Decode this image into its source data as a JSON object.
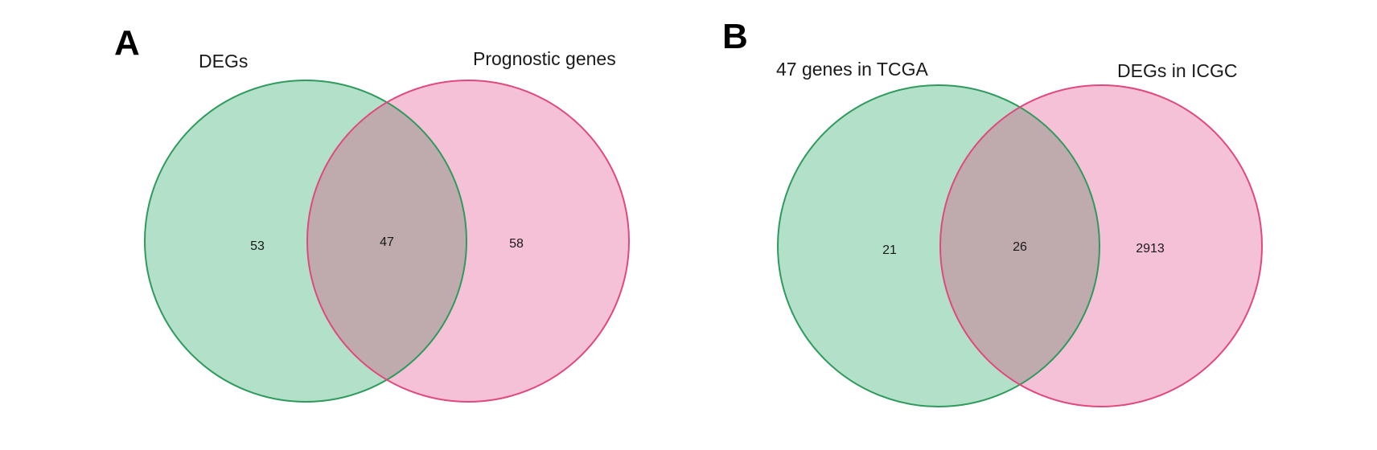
{
  "colors": {
    "left_fill": "#b3e0c9",
    "left_stroke": "#2e9a5c",
    "right_fill": "#f5c1d6",
    "right_stroke": "#e0487e",
    "overlap_fill": "#bfaaae"
  },
  "panels": [
    {
      "letter": "A",
      "left_label": "DEGs",
      "right_label": "Prognostic genes",
      "left_only": "53",
      "intersection": "47",
      "right_only": "58"
    },
    {
      "letter": "B",
      "left_label": "47 genes in TCGA",
      "right_label": "DEGs in ICGC",
      "left_only": "21",
      "intersection": "26",
      "right_only": "2913"
    }
  ]
}
